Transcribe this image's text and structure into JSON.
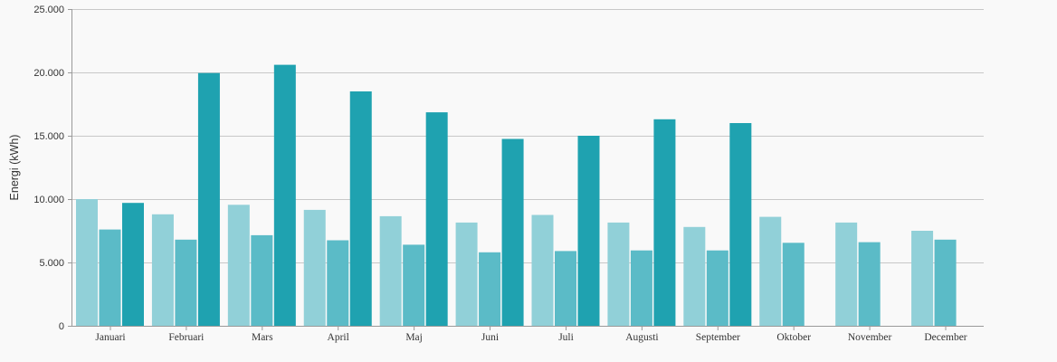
{
  "chart_data": {
    "type": "bar",
    "ylabel": "Energi (kWh)",
    "ylim": [
      0,
      25000
    ],
    "yticks": [
      0,
      5000,
      10000,
      15000,
      20000,
      25000
    ],
    "ytick_labels": [
      "0",
      "5.000",
      "10.000",
      "15.000",
      "20.000",
      "25.000"
    ],
    "grid": true,
    "categories": [
      "Januari",
      "Februari",
      "Mars",
      "April",
      "Maj",
      "Juni",
      "Juli",
      "Augusti",
      "September",
      "Oktober",
      "November",
      "December"
    ],
    "series": [
      {
        "color": "#91d0d8",
        "values": [
          10000,
          8800,
          9550,
          9150,
          8650,
          8150,
          8750,
          8150,
          7800,
          8600,
          8150,
          7500
        ]
      },
      {
        "color": "#5bbbc7",
        "values": [
          7600,
          6800,
          7150,
          6750,
          6400,
          5800,
          5900,
          5950,
          5950,
          6550,
          6600,
          6800
        ]
      },
      {
        "color": "#1fa2b0",
        "values": [
          9700,
          19950,
          20600,
          18500,
          16850,
          14750,
          15000,
          16300,
          16000,
          null,
          null,
          null
        ]
      }
    ]
  }
}
